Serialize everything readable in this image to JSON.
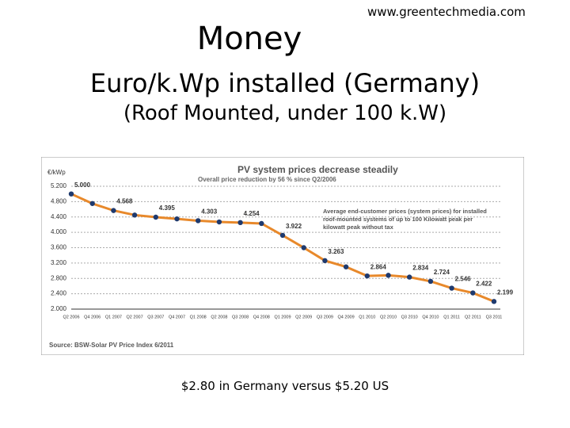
{
  "slide": {
    "source_url": "www.greentechmedia.com",
    "title": "Money",
    "subtitle": "Euro/k.Wp installed (Germany)",
    "subtitle2": "(Roof Mounted, under 100 k.W)",
    "caption": "$2.80 in Germany versus $5.20 US"
  },
  "chart_data": {
    "type": "line",
    "title": "PV system prices decrease steadily",
    "subtitle": "Overall price reduction by 56 % since Q2/2006",
    "y_label": "€/kWp",
    "annotation": "Average end-customer prices (system prices) for installed roof-mounted systems of up to 100 Kilowatt peak per kilowatt peak without tax",
    "source": "Source: BSW-Solar PV Price Index 6/2011",
    "categories": [
      "Q2 2006",
      "Q4 2006",
      "Q1 2007",
      "Q2 2007",
      "Q3 2007",
      "Q4 2007",
      "Q1 2008",
      "Q2 2008",
      "Q3 2008",
      "Q4 2008",
      "Q1 2009",
      "Q2 2009",
      "Q3 2009",
      "Q4 2009",
      "Q1 2010",
      "Q2 2010",
      "Q3 2010",
      "Q4 2010",
      "Q1 2011",
      "Q2 2011",
      "Q3 2011"
    ],
    "series": [
      {
        "name": "Average end-customer prices",
        "color": "#e8892b",
        "marker_color": "#1f3a6e",
        "values": [
          5000,
          4750,
          4568,
          4450,
          4395,
          4350,
          4303,
          4270,
          4254,
          4230,
          3922,
          3600,
          3263,
          3100,
          2864,
          2880,
          2834,
          2724,
          2546,
          2422,
          2199
        ],
        "value_labels": [
          "5.000",
          null,
          "4.568",
          null,
          "4.395",
          null,
          "4.303",
          null,
          "4.254",
          null,
          "3.922",
          null,
          "3.263",
          null,
          "2.864",
          null,
          "2.834",
          "2.724",
          "2.546",
          "2.422",
          "2.199"
        ]
      }
    ],
    "ylim": [
      2000,
      5200
    ],
    "yticks": [
      {
        "value": 2000,
        "label": "2.000"
      },
      {
        "value": 2400,
        "label": "2.400"
      },
      {
        "value": 2800,
        "label": "2.800"
      },
      {
        "value": 3200,
        "label": "3.200"
      },
      {
        "value": 3600,
        "label": "3.600"
      },
      {
        "value": 4000,
        "label": "4.000"
      },
      {
        "value": 4400,
        "label": "4.400"
      },
      {
        "value": 4800,
        "label": "4.800"
      },
      {
        "value": 5200,
        "label": "5.200"
      }
    ],
    "grid": true
  }
}
